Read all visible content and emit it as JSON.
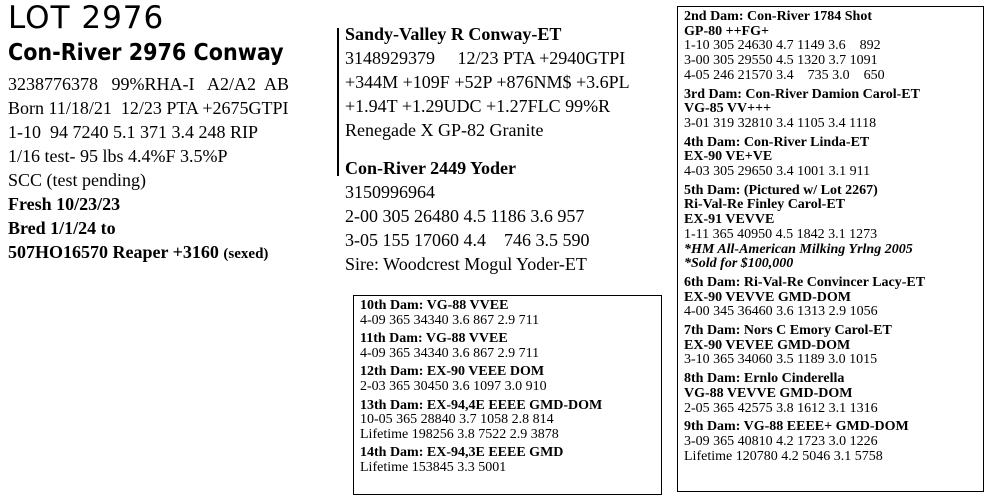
{
  "header": {
    "lot": "LOT 2976",
    "name": "Con-River 2976 Conway"
  },
  "animal": {
    "lines": [
      "3238776378   99%RHA-I   A2/A2  AB",
      "Born 11/18/21  12/23 PTA +2675GTPI",
      "1-10  94 7240 5.1 371 3.4 248 RIP",
      "1/16 test- 95 lbs 4.4%F 3.5%P",
      "SCC (test pending)"
    ],
    "bold_lines": [
      "Fresh 10/23/23",
      "Bred 1/1/24 to"
    ],
    "service": {
      "sire": "507HO16570 Reaper +3160",
      "note": "(sexed)"
    }
  },
  "sire": {
    "title": "Sandy-Valley R Conway-ET",
    "lines": [
      "3148929379     12/23 PTA +2940GTPI",
      "+344M +109F +52P +876NM$ +3.6PL",
      "+1.94T +1.29UDC +1.27FLC 99%R",
      "Renegade X GP-82 Granite"
    ]
  },
  "dam": {
    "title": "Con-River 2449 Yoder",
    "lines": [
      "3150996964",
      "2-00 305 26480 4.5 1186 3.6 957",
      "3-05 155 17060 4.4    746 3.5 590",
      "Sire: Woodcrest Mogul Yoder-ET"
    ]
  },
  "center_box": [
    {
      "title": [
        "10th Dam: VG-88 VVEE"
      ],
      "lines": [
        "4-09 365 34340 3.6 867 2.9 711"
      ]
    },
    {
      "title": [
        "11th Dam: VG-88 VVEE"
      ],
      "lines": [
        "4-09 365 34340 3.6 867 2.9 711"
      ]
    },
    {
      "title": [
        "12th Dam: EX-90 VEEE DOM"
      ],
      "lines": [
        "2-03 365 30450 3.6 1097 3.0 910"
      ]
    },
    {
      "title": [
        "13th Dam: EX-94,4E EEEE GMD-DOM"
      ],
      "lines": [
        "10-05 365 28840 3.7 1058 2.8 814",
        "Lifetime 198256 3.8 7522 2.9 3878"
      ]
    },
    {
      "title": [
        "14th Dam: EX-94,3E EEEE GMD"
      ],
      "lines": [
        "Lifetime 153845 3.3 5001"
      ]
    }
  ],
  "right_box": [
    {
      "title": [
        "2nd Dam: Con-River 1784 Shot",
        "GP-80  ++FG+"
      ],
      "lines": [
        "1-10 305 24630 4.7 1149 3.6    892",
        "3-00 305 29550 4.5 1320 3.7 1091",
        "4-05 246 21570 3.4    735 3.0    650"
      ]
    },
    {
      "title": [
        "3rd Dam: Con-River Damion Carol-ET",
        "VG-85  VV+++"
      ],
      "lines": [
        "3-01 319 32810 3.4 1105 3.4 1118"
      ]
    },
    {
      "title": [
        "4th Dam: Con-River Linda-ET",
        "EX-90  VE+VE"
      ],
      "lines": [
        "4-03 305 29650 3.4 1001 3.1 911"
      ]
    },
    {
      "title": [
        "5th Dam: (Pictured w/ Lot 2267)",
        "Ri-Val-Re Finley Carol-ET",
        "EX-91  VEVVE"
      ],
      "lines": [
        "1-11 365 40950 4.5 1842 3.1 1273"
      ],
      "notes": [
        "*HM All-American Milking Yrlng 2005",
        "*Sold for $100,000"
      ]
    },
    {
      "title": [
        "6th Dam: Ri-Val-Re Convincer Lacy-ET",
        "EX-90  VEVVE  GMD-DOM"
      ],
      "lines": [
        "4-00 345 36460 3.6 1313 2.9 1056"
      ]
    },
    {
      "title": [
        "7th Dam: Nors C Emory Carol-ET",
        "EX-90  VEVEE  GMD-DOM"
      ],
      "lines": [
        "3-10 365 34060 3.5 1189 3.0 1015"
      ]
    },
    {
      "title": [
        "8th Dam: Ernlo Cinderella",
        "VG-88 VEVVE GMD-DOM"
      ],
      "lines": [
        "2-05 365 42575 3.8 1612 3.1 1316"
      ]
    },
    {
      "title": [
        "9th Dam: VG-88 EEEE+ GMD-DOM"
      ],
      "lines": [
        "3-09 365 40810 4.2 1723 3.0 1226",
        "Lifetime 120780 4.2 5046 3.1 5758"
      ]
    }
  ]
}
